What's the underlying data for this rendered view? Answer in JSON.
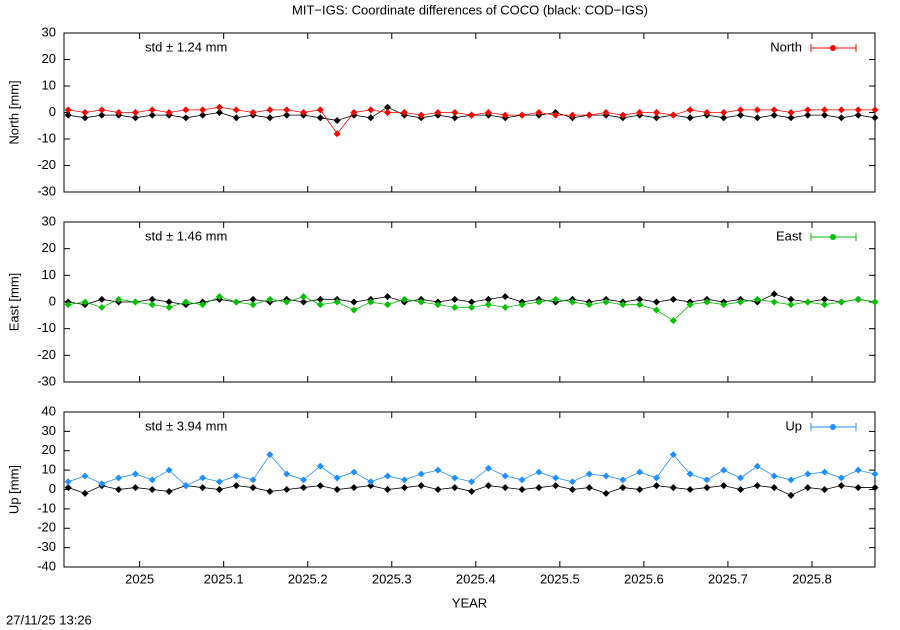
{
  "title": "MIT−IGS: Coordinate differences of COCO (black: COD−IGS)",
  "timestamp": "27/11/25 13:26",
  "chart_data": [
    {
      "type": "line",
      "ylabel": "North [mm]",
      "annotation": "std ± 1.24 mm",
      "xlim": [
        2024.91,
        2025.875
      ],
      "ylim": [
        -30,
        30
      ],
      "yticks": [
        -30,
        -20,
        -10,
        0,
        10,
        20,
        30
      ],
      "x": [
        2024.915,
        2024.935,
        2024.955,
        2024.975,
        2024.995,
        2025.015,
        2025.035,
        2025.055,
        2025.075,
        2025.095,
        2025.115,
        2025.135,
        2025.155,
        2025.175,
        2025.195,
        2025.215,
        2025.235,
        2025.255,
        2025.275,
        2025.295,
        2025.315,
        2025.335,
        2025.355,
        2025.375,
        2025.395,
        2025.415,
        2025.435,
        2025.455,
        2025.475,
        2025.495,
        2025.515,
        2025.535,
        2025.555,
        2025.575,
        2025.595,
        2025.615,
        2025.635,
        2025.655,
        2025.675,
        2025.695,
        2025.715,
        2025.735,
        2025.755,
        2025.775,
        2025.795,
        2025.815,
        2025.835,
        2025.855,
        2025.875
      ],
      "series": [
        {
          "color": "#000000",
          "values": [
            -1,
            -2,
            -1,
            -1,
            -2,
            -1,
            -1,
            -2,
            -1,
            0,
            -2,
            -1,
            -2,
            -1,
            -1,
            -2,
            -3,
            -1,
            -2,
            2,
            -1,
            -2,
            -1,
            -2,
            -1,
            -1,
            -2,
            -1,
            -1,
            0,
            -2,
            -1,
            -1,
            -2,
            -1,
            -2,
            -1,
            -2,
            -1,
            -2,
            -1,
            -2,
            -1,
            -2,
            -1,
            -1,
            -2,
            -1,
            -2
          ]
        },
        {
          "name": "North",
          "color": "#ff0000",
          "values": [
            1,
            0,
            1,
            0,
            0,
            1,
            0,
            1,
            1,
            2,
            1,
            0,
            1,
            1,
            0,
            1,
            -8,
            0,
            1,
            0,
            0,
            -1,
            0,
            0,
            -1,
            0,
            -1,
            -1,
            0,
            -1,
            -1,
            -1,
            0,
            -1,
            0,
            0,
            -1,
            1,
            0,
            0,
            1,
            1,
            1,
            0,
            1,
            1,
            1,
            1,
            1
          ]
        }
      ]
    },
    {
      "type": "line",
      "ylabel": "East [mm]",
      "annotation": "std ± 1.46 mm",
      "xlim": [
        2024.91,
        2025.875
      ],
      "ylim": [
        -30,
        30
      ],
      "yticks": [
        -30,
        -20,
        -10,
        0,
        10,
        20,
        30
      ],
      "x": [
        2024.915,
        2024.935,
        2024.955,
        2024.975,
        2024.995,
        2025.015,
        2025.035,
        2025.055,
        2025.075,
        2025.095,
        2025.115,
        2025.135,
        2025.155,
        2025.175,
        2025.195,
        2025.215,
        2025.235,
        2025.255,
        2025.275,
        2025.295,
        2025.315,
        2025.335,
        2025.355,
        2025.375,
        2025.395,
        2025.415,
        2025.435,
        2025.455,
        2025.475,
        2025.495,
        2025.515,
        2025.535,
        2025.555,
        2025.575,
        2025.595,
        2025.615,
        2025.635,
        2025.655,
        2025.675,
        2025.695,
        2025.715,
        2025.735,
        2025.755,
        2025.775,
        2025.795,
        2025.815,
        2025.835,
        2025.855,
        2025.875
      ],
      "series": [
        {
          "color": "#000000",
          "values": [
            0,
            -1,
            1,
            0,
            0,
            1,
            0,
            -1,
            0,
            1,
            0,
            1,
            0,
            1,
            0,
            1,
            1,
            0,
            1,
            2,
            0,
            1,
            0,
            1,
            0,
            1,
            2,
            0,
            1,
            0,
            1,
            0,
            1,
            0,
            1,
            0,
            1,
            0,
            1,
            0,
            1,
            0,
            3,
            1,
            0,
            1,
            0,
            1,
            0
          ]
        },
        {
          "name": "East",
          "color": "#00c000",
          "values": [
            -1,
            0,
            -2,
            1,
            0,
            -1,
            -2,
            0,
            -1,
            2,
            0,
            -1,
            1,
            0,
            2,
            -1,
            0,
            -3,
            0,
            -1,
            1,
            0,
            -1,
            -2,
            -2,
            -1,
            -2,
            -1,
            0,
            1,
            0,
            -1,
            0,
            -1,
            -1,
            -3,
            -7,
            -1,
            0,
            -1,
            0,
            1,
            0,
            -1,
            0,
            -1,
            0,
            1,
            0
          ]
        }
      ]
    },
    {
      "type": "line",
      "ylabel": "Up [mm]",
      "annotation": "std ± 3.94 mm",
      "xlabel": "YEAR",
      "xlim": [
        2024.91,
        2025.875
      ],
      "xticks": [
        2025,
        2025.1,
        2025.2,
        2025.3,
        2025.4,
        2025.5,
        2025.6,
        2025.7,
        2025.8
      ],
      "ylim": [
        -40,
        40
      ],
      "yticks": [
        -40,
        -30,
        -20,
        -10,
        0,
        10,
        20,
        30,
        40
      ],
      "x": [
        2024.915,
        2024.935,
        2024.955,
        2024.975,
        2024.995,
        2025.015,
        2025.035,
        2025.055,
        2025.075,
        2025.095,
        2025.115,
        2025.135,
        2025.155,
        2025.175,
        2025.195,
        2025.215,
        2025.235,
        2025.255,
        2025.275,
        2025.295,
        2025.315,
        2025.335,
        2025.355,
        2025.375,
        2025.395,
        2025.415,
        2025.435,
        2025.455,
        2025.475,
        2025.495,
        2025.515,
        2025.535,
        2025.555,
        2025.575,
        2025.595,
        2025.615,
        2025.635,
        2025.655,
        2025.675,
        2025.695,
        2025.715,
        2025.735,
        2025.755,
        2025.775,
        2025.795,
        2025.815,
        2025.835,
        2025.855,
        2025.875
      ],
      "series": [
        {
          "color": "#000000",
          "values": [
            1,
            -2,
            2,
            0,
            1,
            0,
            -1,
            2,
            1,
            0,
            2,
            1,
            -1,
            0,
            1,
            2,
            0,
            1,
            2,
            0,
            1,
            2,
            0,
            1,
            -1,
            2,
            1,
            0,
            1,
            2,
            0,
            1,
            -2,
            1,
            0,
            2,
            1,
            0,
            1,
            2,
            0,
            2,
            1,
            -3,
            1,
            0,
            2,
            1,
            1
          ]
        },
        {
          "name": "Up",
          "color": "#1e90ff",
          "values": [
            4,
            7,
            3,
            6,
            8,
            5,
            10,
            2,
            6,
            4,
            7,
            5,
            18,
            8,
            5,
            12,
            6,
            9,
            4,
            7,
            5,
            8,
            10,
            6,
            4,
            11,
            7,
            5,
            9,
            6,
            4,
            8,
            7,
            5,
            9,
            6,
            18,
            8,
            5,
            10,
            6,
            12,
            7,
            5,
            8,
            9,
            6,
            10,
            8
          ]
        }
      ]
    }
  ]
}
